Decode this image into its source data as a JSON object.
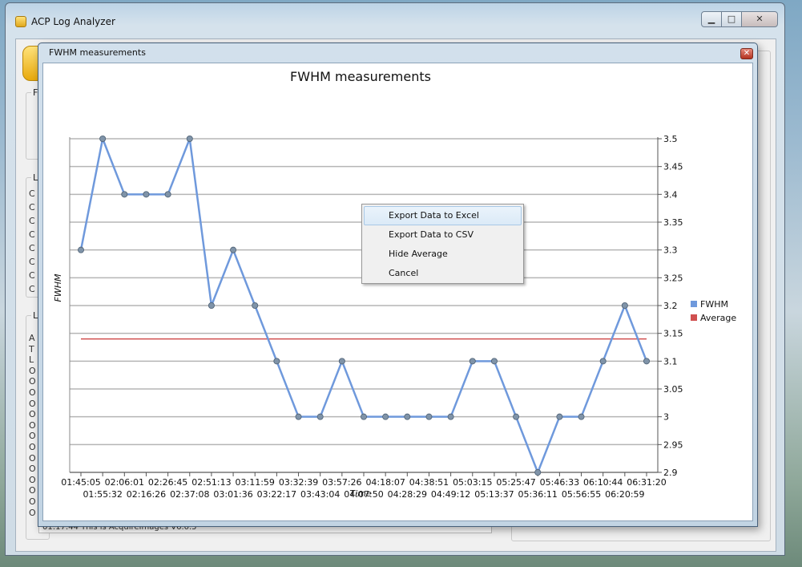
{
  "main_window": {
    "title": "ACP Log Analyzer",
    "caption_min": "▁",
    "caption_max": "□",
    "caption_close": "✕",
    "group_files": "Fi",
    "group_log": "Lo",
    "group_lines": "Lo",
    "ghost_lines_log": [
      "C",
      "C",
      "C",
      "C",
      "C",
      "C",
      "C",
      "C"
    ],
    "ghost_lines_lines": [
      "A",
      "T",
      "L",
      "O",
      "O",
      "O",
      "O",
      "O",
      "O",
      "O",
      "O",
      "O",
      "O",
      "O",
      "O",
      "O",
      "O"
    ],
    "bottom_log_line": "01:17:44 This is AcquireImages V6.0.5"
  },
  "dialog": {
    "title": "FWHM measurements",
    "close": "✕"
  },
  "context_menu": {
    "items": [
      {
        "label": "Export Data to Excel",
        "highlighted": true
      },
      {
        "label": "Export Data to CSV",
        "highlighted": false
      },
      {
        "label": "Hide Average",
        "highlighted": false
      },
      {
        "label": "Cancel",
        "highlighted": false
      }
    ]
  },
  "colors": {
    "fwhm_line": "#6f99dc",
    "average_line": "#d05050",
    "marker_fill": "#7f93a8",
    "grid": "#b5b5b5"
  },
  "chart_data": {
    "type": "line",
    "title": "FWHM measurements",
    "xlabel": "Time",
    "ylabel": "FWHM",
    "ylim": [
      2.9,
      3.5
    ],
    "y_axis_side": "right",
    "y_ticks": [
      "3.5",
      "3.45",
      "3.4",
      "3.35",
      "3.3",
      "3.25",
      "3.2",
      "3.15",
      "3.1",
      "3.05",
      "3",
      "2.95",
      "2.9"
    ],
    "x": [
      "01:45:05",
      "01:55:32",
      "02:06:01",
      "02:16:26",
      "02:26:45",
      "02:37:08",
      "02:51:13",
      "03:01:36",
      "03:11:59",
      "03:22:17",
      "03:32:39",
      "03:43:04",
      "03:57:26",
      "04:07:50",
      "04:18:07",
      "04:28:29",
      "04:38:51",
      "04:49:12",
      "05:03:15",
      "05:13:37",
      "05:25:47",
      "05:36:11",
      "05:46:33",
      "05:56:55",
      "06:10:44",
      "06:20:59",
      "06:31:20"
    ],
    "series": [
      {
        "name": "FWHM",
        "values": [
          3.3,
          3.5,
          3.4,
          3.4,
          3.4,
          3.5,
          3.2,
          3.3,
          3.2,
          3.1,
          3.0,
          3.0,
          3.1,
          3.0,
          3.0,
          3.0,
          3.0,
          3.0,
          3.1,
          3.1,
          3.0,
          2.9,
          3.0,
          3.0,
          3.1,
          3.2,
          3.1
        ]
      },
      {
        "name": "Average",
        "values": [
          3.14,
          3.14,
          3.14,
          3.14,
          3.14,
          3.14,
          3.14,
          3.14,
          3.14,
          3.14,
          3.14,
          3.14,
          3.14,
          3.14,
          3.14,
          3.14,
          3.14,
          3.14,
          3.14,
          3.14,
          3.14,
          3.14,
          3.14,
          3.14,
          3.14,
          3.14,
          3.14
        ]
      }
    ],
    "legend_position": "right",
    "grid": true
  }
}
